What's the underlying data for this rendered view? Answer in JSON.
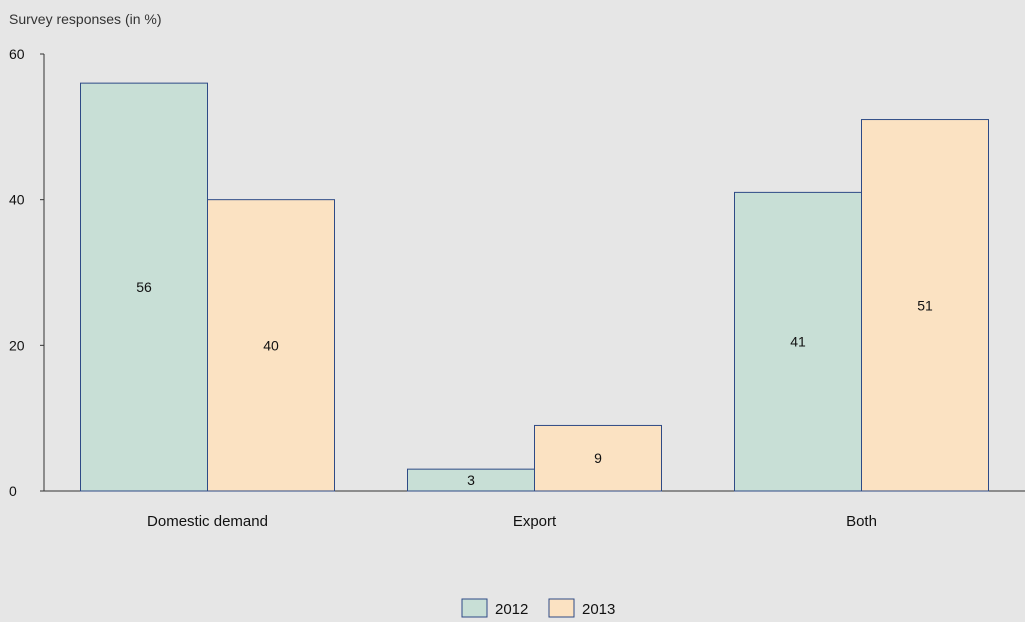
{
  "chart_data": {
    "type": "bar",
    "title": "",
    "xlabel": "",
    "ylabel": "Survey responses (in %)",
    "categories": [
      "Domestic demand",
      "Export",
      "Both"
    ],
    "series": [
      {
        "name": "2012",
        "values": [
          56,
          3,
          41
        ],
        "color": "#c8dfd6"
      },
      {
        "name": "2013",
        "values": [
          40,
          9,
          51
        ],
        "color": "#fbe2c2"
      }
    ],
    "data_labels": {
      "2012": [
        "56",
        "3",
        "41"
      ],
      "2013": [
        "40",
        "9",
        "51"
      ]
    },
    "ylim": [
      0,
      60
    ],
    "yticks": [
      0,
      20,
      40,
      60
    ],
    "grid": false,
    "legend_position": "bottom-center",
    "bar_outline_color": "#2e4a86"
  }
}
